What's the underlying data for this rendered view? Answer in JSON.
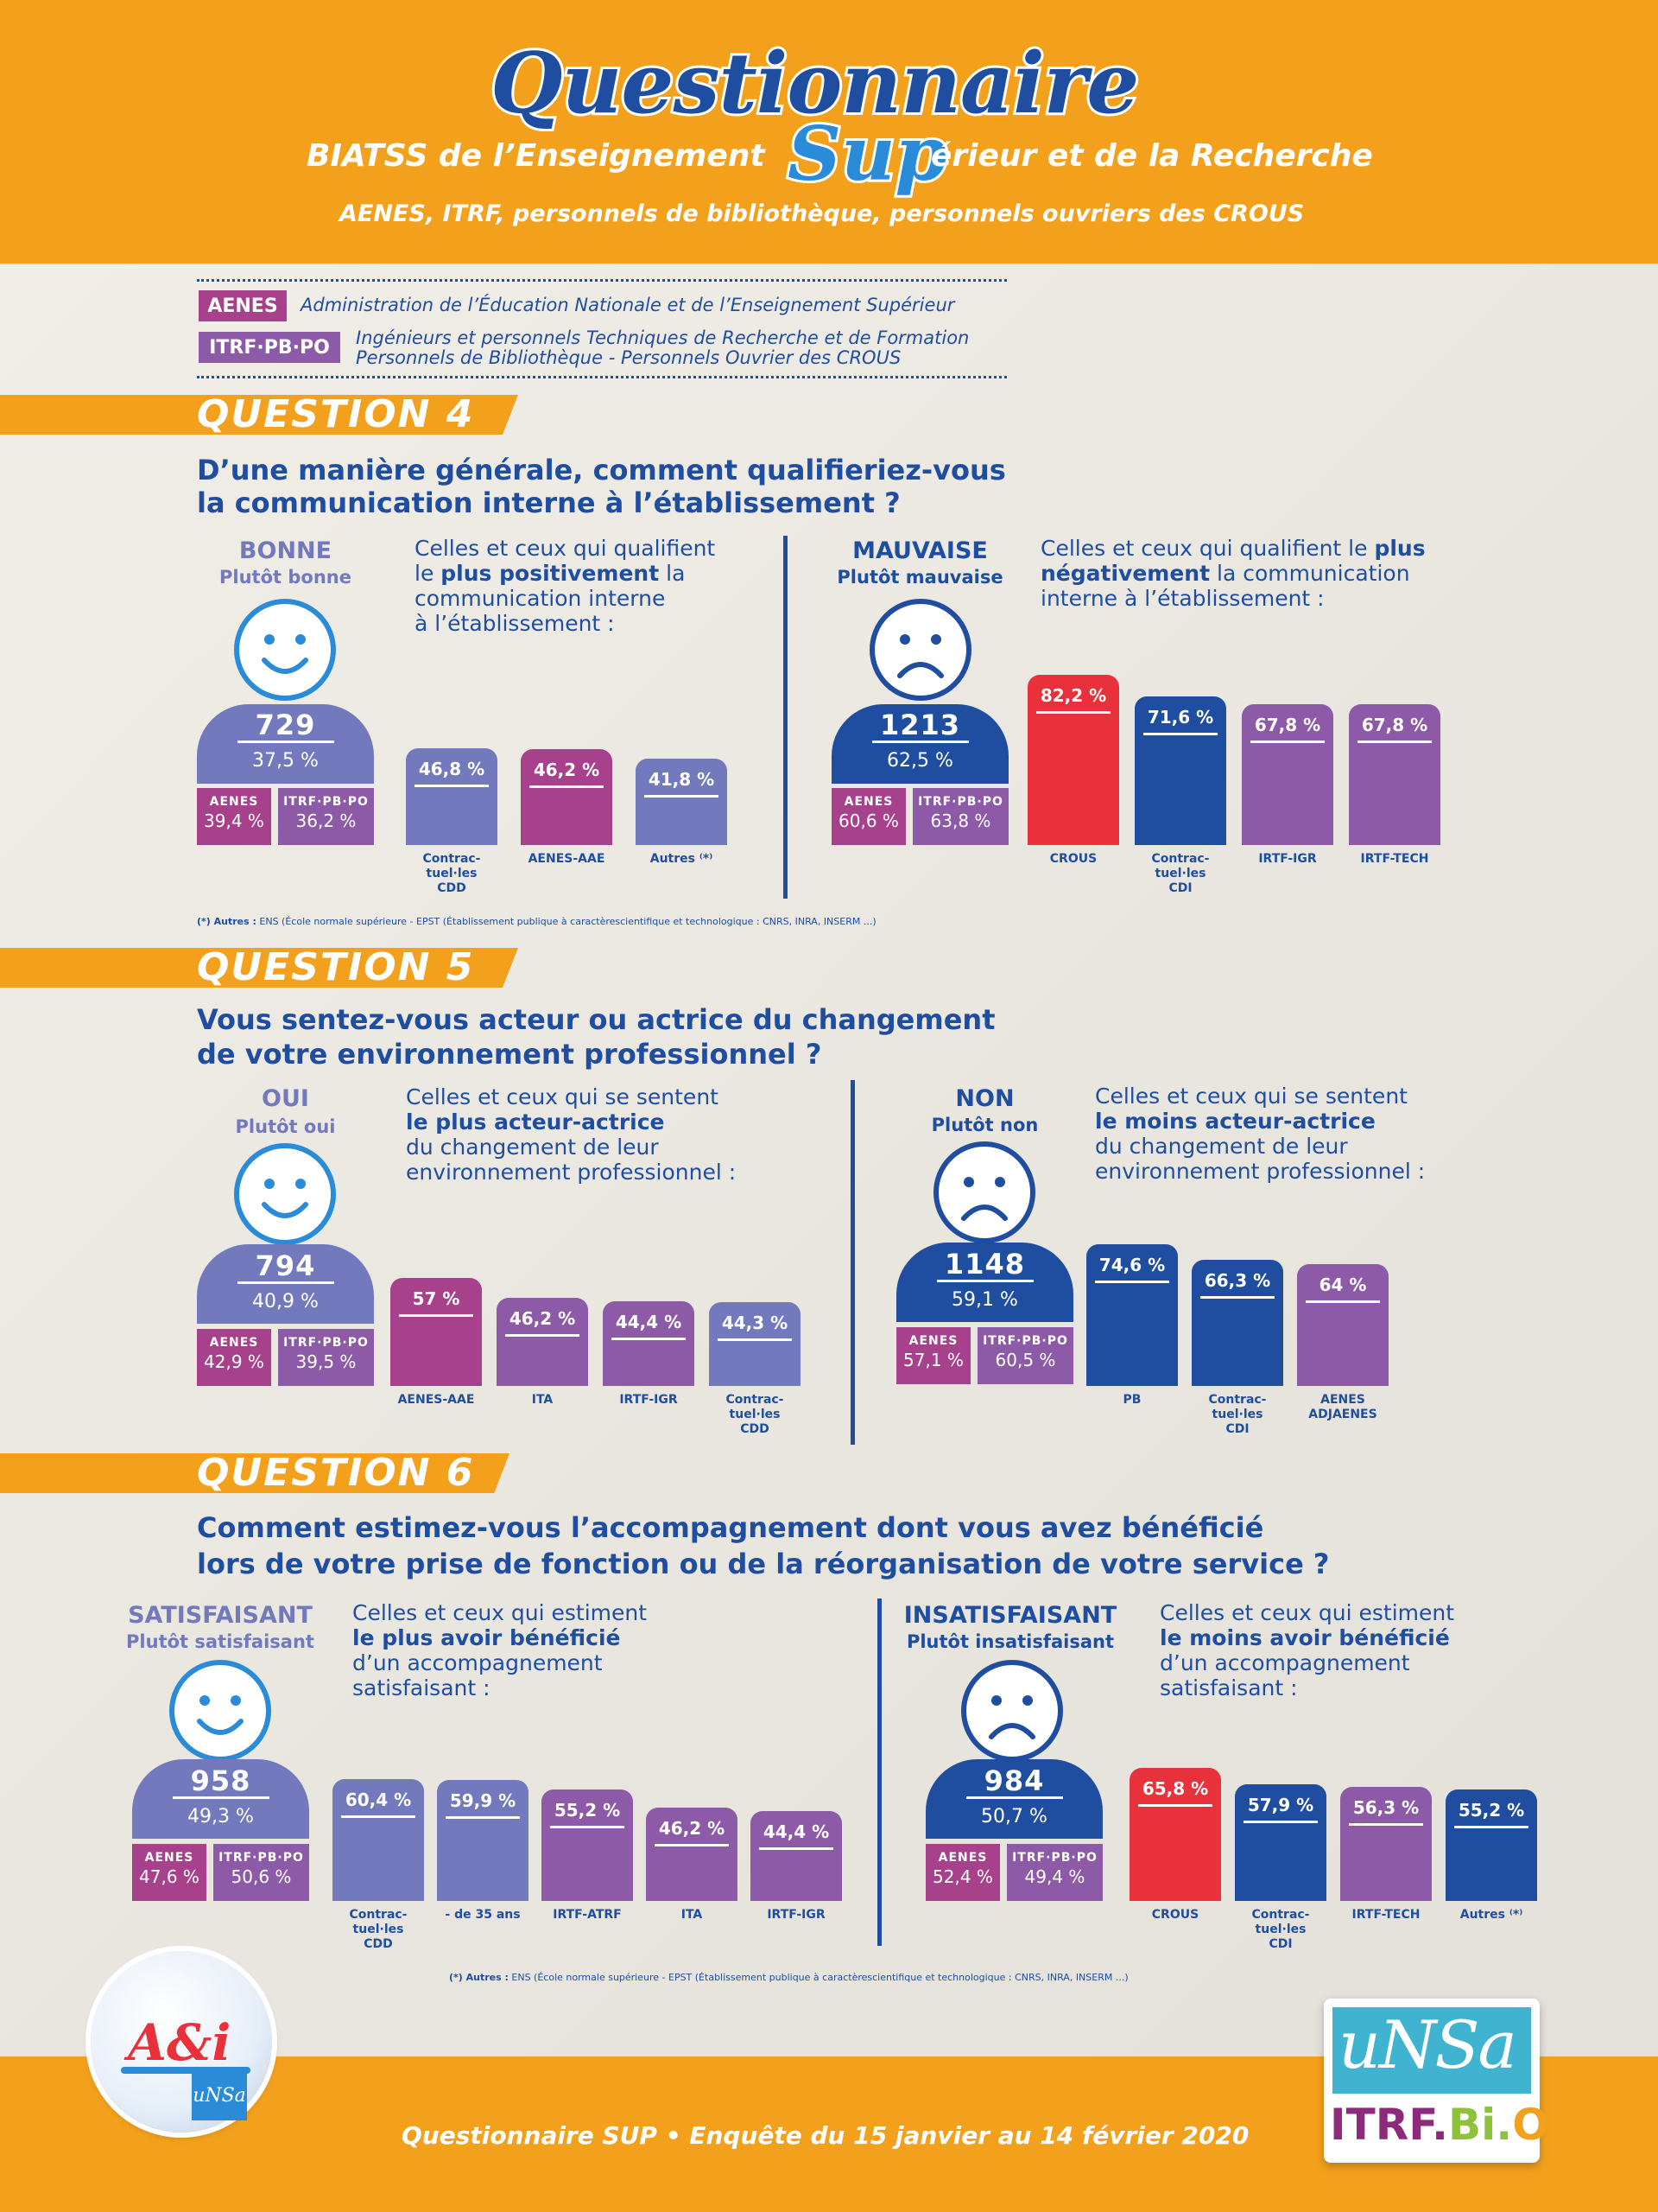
{
  "header": {
    "title": "Questionnaire",
    "subtitle_left": "BIATSS de l’Enseignement",
    "subtitle_sup": "Sup",
    "subtitle_right": "érieur et de la Recherche",
    "subtitle2": "AENES, ITRF, personnels de bibliothèque, personnels ouvriers des CROUS"
  },
  "legend": {
    "aenes_tag": "AENES",
    "aenes_desc": "Administration de l’Éducation Nationale et de l’Enseignement Supérieur",
    "itrf_tag": "ITRF·PB·PO",
    "itrf_desc1": "Ingénieurs et personnels Techniques de Recherche et de Formation",
    "itrf_desc2": "Personnels de Bibliothèque - Personnels Ouvrier des CROUS"
  },
  "colors": {
    "orange": "#f3a11d",
    "blue": "#1f4ea1",
    "lavender": "#7279bd",
    "magenta": "#a7418b",
    "purple": "#8d5aa7",
    "red": "#e8313a"
  },
  "q4": {
    "label": "QUESTION 4",
    "line1": "D’une manière générale, comment qualifieriez-vous",
    "line2": "la communication interne à l’établissement ?",
    "left": {
      "h1": "BONNE",
      "h2": "Plutôt bonne",
      "count": "729",
      "pct": "37,5 %",
      "aenes_lbl": "AENES",
      "aenes_val": "39,4 %",
      "itrf_lbl": "ITRF·PB·PO",
      "itrf_val": "36,2 %",
      "icon": "smiley-icon",
      "d1": "Celles et ceux qui qualifient",
      "d2a": "le ",
      "d2b": "plus positivement",
      "d2c": " la",
      "d3": "communication interne",
      "d4": "à l’établissement :"
    },
    "right": {
      "h1": "MAUVAISE",
      "h2": "Plutôt mauvaise",
      "count": "1213",
      "pct": "62,5 %",
      "aenes_lbl": "AENES",
      "aenes_val": "60,6 %",
      "itrf_lbl": "ITRF·PB·PO",
      "itrf_val": "63,8 %",
      "icon": "frowny-icon",
      "d1a": "Celles et ceux qui qualifient le ",
      "d1b": "plus",
      "d2a": "négativement",
      "d2b": " la communication",
      "d3": "interne à l’établissement :"
    },
    "bars_left": [
      {
        "value": 46.8,
        "label": "46,8 %",
        "cat": "Contrac-\ntuel·les\nCDD"
      },
      {
        "value": 46.2,
        "label": "46,2 %",
        "cat": "AENES-AAE"
      },
      {
        "value": 41.8,
        "label": "41,8 %",
        "cat": "Autres ⁽*⁾"
      }
    ],
    "bars_right": [
      {
        "value": 82.2,
        "label": "82,2 %",
        "cat": "CROUS"
      },
      {
        "value": 71.6,
        "label": "71,6 %",
        "cat": "Contrac-\ntuel·les\nCDI"
      },
      {
        "value": 67.8,
        "label": "67,8 %",
        "cat": "IRTF-IGR"
      },
      {
        "value": 67.8,
        "label": "67,8 %",
        "cat": "IRTF-TECH"
      }
    ],
    "note_a": "(*) Autres :",
    "note_b": " ENS (École normale supérieure - EPST (Établissement publique à caractèrescientifique et technologique : CNRS, INRA, INSERM ...)"
  },
  "q5": {
    "label": "QUESTION 5",
    "line1": "Vous sentez-vous acteur ou actrice du changement",
    "line2": "de votre environnement professionnel ?",
    "left": {
      "h1": "OUI",
      "h2": "Plutôt oui",
      "count": "794",
      "pct": "40,9 %",
      "aenes_lbl": "AENES",
      "aenes_val": "42,9 %",
      "itrf_lbl": "ITRF·PB·PO",
      "itrf_val": "39,5 %",
      "icon": "smiley-icon",
      "d1": "Celles et ceux qui se sentent",
      "d2": "le plus acteur-actrice",
      "d3": "du changement de leur",
      "d4": "environnement professionnel :"
    },
    "right": {
      "h1": "NON",
      "h2": "Plutôt non",
      "count": "1148",
      "pct": "59,1 %",
      "aenes_lbl": "AENES",
      "aenes_val": "57,1 %",
      "itrf_lbl": "ITRF·PB·PO",
      "itrf_val": "60,5 %",
      "icon": "frowny-icon",
      "d1": "Celles et ceux qui se sentent",
      "d2": "le moins acteur-actrice",
      "d3": "du changement de leur",
      "d4": "environnement professionnel :"
    },
    "bars_left": [
      {
        "value": 57,
        "label": "57 %",
        "cat": "AENES-AAE"
      },
      {
        "value": 46.2,
        "label": "46,2 %",
        "cat": "ITA"
      },
      {
        "value": 44.4,
        "label": "44,4 %",
        "cat": "IRTF-IGR"
      },
      {
        "value": 44.3,
        "label": "44,3 %",
        "cat": "Contrac-\ntuel·les\nCDD"
      }
    ],
    "bars_right": [
      {
        "value": 74.6,
        "label": "74,6 %",
        "cat": "PB"
      },
      {
        "value": 66.3,
        "label": "66,3 %",
        "cat": "Contrac-\ntuel·les\nCDI"
      },
      {
        "value": 64,
        "label": "64 %",
        "cat": "AENES\nADJAENES"
      }
    ]
  },
  "q6": {
    "label": "QUESTION 6",
    "line1": "Comment estimez-vous l’accompagnement dont vous avez bénéficié",
    "line2": "lors de votre prise de fonction ou de la réorganisation de votre service ?",
    "left": {
      "h1": "SATISFAISANT",
      "h2": "Plutôt satisfaisant",
      "count": "958",
      "pct": "49,3 %",
      "aenes_lbl": "AENES",
      "aenes_val": "47,6 %",
      "itrf_lbl": "ITRF·PB·PO",
      "itrf_val": "50,6 %",
      "icon": "smiley-icon",
      "d1": "Celles et ceux qui estiment",
      "d2": "le plus avoir bénéficié",
      "d3": "d’un accompagnement",
      "d4": "satisfaisant :"
    },
    "right": {
      "h1": "INSATISFAISANT",
      "h2": "Plutôt insatisfaisant",
      "count": "984",
      "pct": "50,7 %",
      "aenes_lbl": "AENES",
      "aenes_val": "52,4 %",
      "itrf_lbl": "ITRF·PB·PO",
      "itrf_val": "49,4 %",
      "icon": "frowny-icon",
      "d1": "Celles et ceux qui estiment",
      "d2": "le moins avoir bénéficié",
      "d3": "d’un accompagnement",
      "d4": "satisfaisant :"
    },
    "bars_left": [
      {
        "value": 60.4,
        "label": "60,4 %",
        "cat": "Contrac-\ntuel·les\nCDD"
      },
      {
        "value": 59.9,
        "label": "59,9 %",
        "cat": "- de 35 ans"
      },
      {
        "value": 55.2,
        "label": "55,2 %",
        "cat": "IRTF-ATRF"
      },
      {
        "value": 46.2,
        "label": "46,2 %",
        "cat": "ITA"
      },
      {
        "value": 44.4,
        "label": "44,4 %",
        "cat": "IRTF-IGR"
      }
    ],
    "bars_right": [
      {
        "value": 65.8,
        "label": "65,8 %",
        "cat": "CROUS"
      },
      {
        "value": 57.9,
        "label": "57,9 %",
        "cat": "Contrac-\ntuel·les\nCDI"
      },
      {
        "value": 56.3,
        "label": "56,3 %",
        "cat": "IRTF-TECH"
      },
      {
        "value": 55.2,
        "label": "55,2 %",
        "cat": "Autres ⁽*⁾"
      }
    ],
    "note_a": "(*) Autres :",
    "note_b": " ENS (École normale supérieure - EPST (Établissement publique à caractèrescientifique et technologique : CNRS, INRA, INSERM ...)"
  },
  "footer": {
    "text": "Questionnaire SUP  •  Enquête du 15 janvier au 14 février 2020",
    "logo_left_text": "A&i",
    "logo_left_sub": "uNSa",
    "logo_right_top": "uNSa",
    "logo_right_itrf": "ITRF.",
    "logo_right_bi": "Bi.",
    "logo_right_o": "O"
  }
}
